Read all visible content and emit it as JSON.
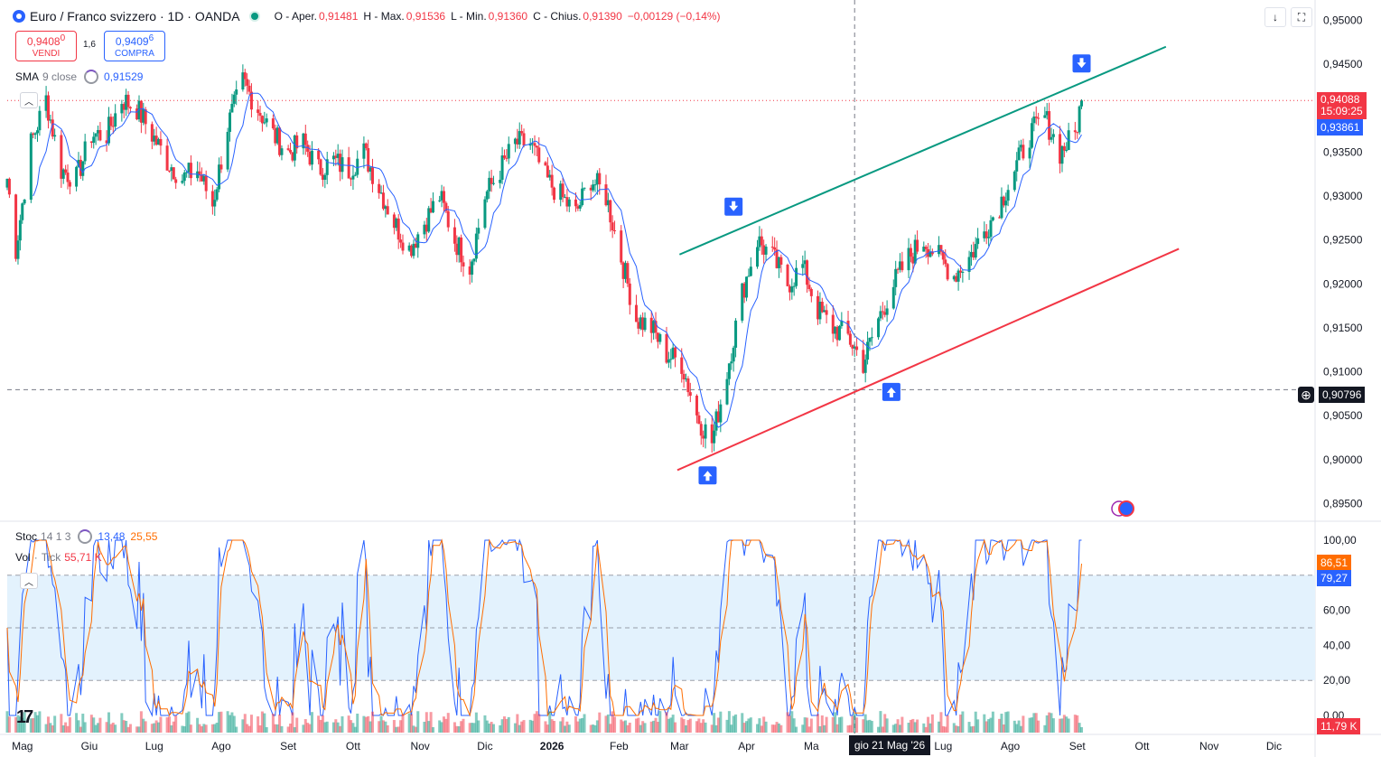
{
  "header": {
    "symbol": "Euro / Franco svizzero · 1D · OANDA",
    "open_label": "O - Aper.",
    "open": "0,91481",
    "high_label": "H - Max.",
    "high": "0,91536",
    "low_label": "L - Min.",
    "low": "0,91360",
    "close_label": "C - Chius.",
    "close": "0,91390",
    "change": "−0,00129 (−0,14%)"
  },
  "trade": {
    "sell_price": "0,9408",
    "sell_sup": "0",
    "sell_label": "VENDI",
    "spread": "1,6",
    "buy_price": "0,9409",
    "buy_sup": "6",
    "buy_label": "COMPRA"
  },
  "sma": {
    "name": "SMA",
    "params": "9 close",
    "value": "0,91529"
  },
  "stoch": {
    "name": "Stoc",
    "params": "14 1 3",
    "k_value": "13,48",
    "d_value": "25,55"
  },
  "volume": {
    "name": "Vol",
    "sep": "·",
    "params": "Tick",
    "value": "55,71 K"
  },
  "price_axis": [
    "0,95000",
    "0,94500",
    "0,94088",
    "0,93861",
    "0,93500",
    "0,93000",
    "0,92500",
    "0,92000",
    "0,91500",
    "0,91000",
    "0,90796",
    "0,90500",
    "0,90000",
    "0,89500"
  ],
  "price_axis_ticks": [
    "0,95000",
    "0,94500",
    "0,93500",
    "0,93000",
    "0,92500",
    "0,92000",
    "0,91500",
    "0,91000",
    "0,90500",
    "0,90000",
    "0,89500"
  ],
  "tags": {
    "last_price": "0,94088",
    "countdown": "15:09:25",
    "sma_price": "0,93861",
    "crosshair_price": "0,90796",
    "stoch_k": "86,51",
    "stoch_d": "79,27",
    "volume": "11,79 K",
    "crosshair_date": "gio 21 Mag '26"
  },
  "osc_axis": [
    "100,00",
    "80,00",
    "60,00",
    "40,00",
    "20,00",
    "0,00"
  ],
  "time_axis": [
    "Mag",
    "Giu",
    "Lug",
    "Ago",
    "Set",
    "Ott",
    "Nov",
    "Dic",
    "2026",
    "Feb",
    "Mar",
    "Apr",
    "Ma",
    "Lug",
    "Ago",
    "Set",
    "Ott",
    "Nov",
    "Dic"
  ],
  "colors": {
    "up": "#089981",
    "down": "#f23645",
    "sma": "#2962ff",
    "stoch_k": "#2962ff",
    "stoch_d": "#ff6d00",
    "upper_line": "#089981",
    "lower_line": "#f23645",
    "band": "#e3f2fd"
  },
  "chart_data": {
    "type": "candlestick",
    "title": "Euro / Franco svizzero · 1D · OANDA",
    "y_range": [
      0.8935,
      0.9515
    ],
    "x_range": [
      "2025-04-24",
      "2026-12-20"
    ],
    "last_close": 0.94088,
    "sma_last": 0.93861,
    "stoch_last": {
      "k": 86.51,
      "d": 79.27
    },
    "stoch_range": [
      0,
      100
    ],
    "stoch_bands": [
      20,
      50,
      80
    ],
    "price_path": [
      [
        "2025-04-24",
        0.932
      ],
      [
        "2025-04-28",
        0.924
      ],
      [
        "2025-05-05",
        0.936
      ],
      [
        "2025-05-12",
        0.941
      ],
      [
        "2025-05-19",
        0.933
      ],
      [
        "2025-05-26",
        0.932
      ],
      [
        "2025-06-02",
        0.937
      ],
      [
        "2025-06-09",
        0.937
      ],
      [
        "2025-06-16",
        0.941
      ],
      [
        "2025-06-23",
        0.94
      ],
      [
        "2025-06-30",
        0.937
      ],
      [
        "2025-07-07",
        0.934
      ],
      [
        "2025-07-14",
        0.932
      ],
      [
        "2025-07-21",
        0.933
      ],
      [
        "2025-07-28",
        0.929
      ],
      [
        "2025-08-04",
        0.938
      ],
      [
        "2025-08-11",
        0.943
      ],
      [
        "2025-08-18",
        0.94
      ],
      [
        "2025-08-25",
        0.937
      ],
      [
        "2025-09-01",
        0.935
      ],
      [
        "2025-09-08",
        0.936
      ],
      [
        "2025-09-15",
        0.933
      ],
      [
        "2025-09-22",
        0.934
      ],
      [
        "2025-09-29",
        0.933
      ],
      [
        "2025-10-06",
        0.935
      ],
      [
        "2025-10-13",
        0.931
      ],
      [
        "2025-10-20",
        0.927
      ],
      [
        "2025-10-27",
        0.924
      ],
      [
        "2025-11-03",
        0.927
      ],
      [
        "2025-11-10",
        0.93
      ],
      [
        "2025-11-17",
        0.925
      ],
      [
        "2025-11-24",
        0.922
      ],
      [
        "2025-12-01",
        0.93
      ],
      [
        "2025-12-08",
        0.933
      ],
      [
        "2025-12-15",
        0.936
      ],
      [
        "2025-12-22",
        0.936
      ],
      [
        "2025-12-29",
        0.932
      ],
      [
        "2026-01-05",
        0.93
      ],
      [
        "2026-01-12",
        0.928
      ],
      [
        "2026-01-19",
        0.932
      ],
      [
        "2026-01-26",
        0.93
      ],
      [
        "2026-02-02",
        0.923
      ],
      [
        "2026-02-09",
        0.916
      ],
      [
        "2026-02-16",
        0.915
      ],
      [
        "2026-02-23",
        0.912
      ],
      [
        "2026-03-02",
        0.911
      ],
      [
        "2026-03-09",
        0.905
      ],
      [
        "2026-03-16",
        0.902
      ],
      [
        "2026-03-23",
        0.91
      ],
      [
        "2026-03-30",
        0.919
      ],
      [
        "2026-04-06",
        0.925
      ],
      [
        "2026-04-13",
        0.923
      ],
      [
        "2026-04-20",
        0.92
      ],
      [
        "2026-04-27",
        0.922
      ],
      [
        "2026-05-04",
        0.917
      ],
      [
        "2026-05-11",
        0.915
      ],
      [
        "2026-05-18",
        0.914
      ],
      [
        "2026-05-25",
        0.911
      ],
      [
        "2026-06-01",
        0.916
      ],
      [
        "2026-06-08",
        0.92
      ],
      [
        "2026-06-15",
        0.923
      ],
      [
        "2026-06-22",
        0.925
      ],
      [
        "2026-06-29",
        0.923
      ],
      [
        "2026-07-06",
        0.921
      ],
      [
        "2026-07-13",
        0.923
      ],
      [
        "2026-07-20",
        0.926
      ],
      [
        "2026-07-27",
        0.929
      ],
      [
        "2026-08-03",
        0.933
      ],
      [
        "2026-08-10",
        0.937
      ],
      [
        "2026-08-17",
        0.939
      ],
      [
        "2026-08-24",
        0.935
      ],
      [
        "2026-08-31",
        0.937
      ],
      [
        "2026-09-03",
        0.941
      ]
    ],
    "trendlines": [
      {
        "name": "upper",
        "color": "#089981",
        "from": [
          "2026-03-01",
          0.92335
        ],
        "to": [
          "2026-10-12",
          0.947
        ]
      },
      {
        "name": "lower",
        "color": "#f23645",
        "from": [
          "2026-02-28",
          0.8988
        ],
        "to": [
          "2026-10-18",
          0.924
        ]
      }
    ],
    "horizontal_lines": [
      {
        "price": 0.90796,
        "style": "dashed"
      },
      {
        "price": 0.94088,
        "style": "dotted"
      }
    ],
    "markers": [
      {
        "date": "2026-03-26",
        "price": 0.9288,
        "direction": "down"
      },
      {
        "date": "2026-03-14",
        "price": 0.8982,
        "direction": "up"
      },
      {
        "date": "2026-06-07",
        "price": 0.9077,
        "direction": "up"
      },
      {
        "date": "2026-09-03",
        "price": 0.9451,
        "direction": "down"
      }
    ],
    "crosshair": {
      "date": "2026-05-21",
      "price": 0.90796
    }
  }
}
